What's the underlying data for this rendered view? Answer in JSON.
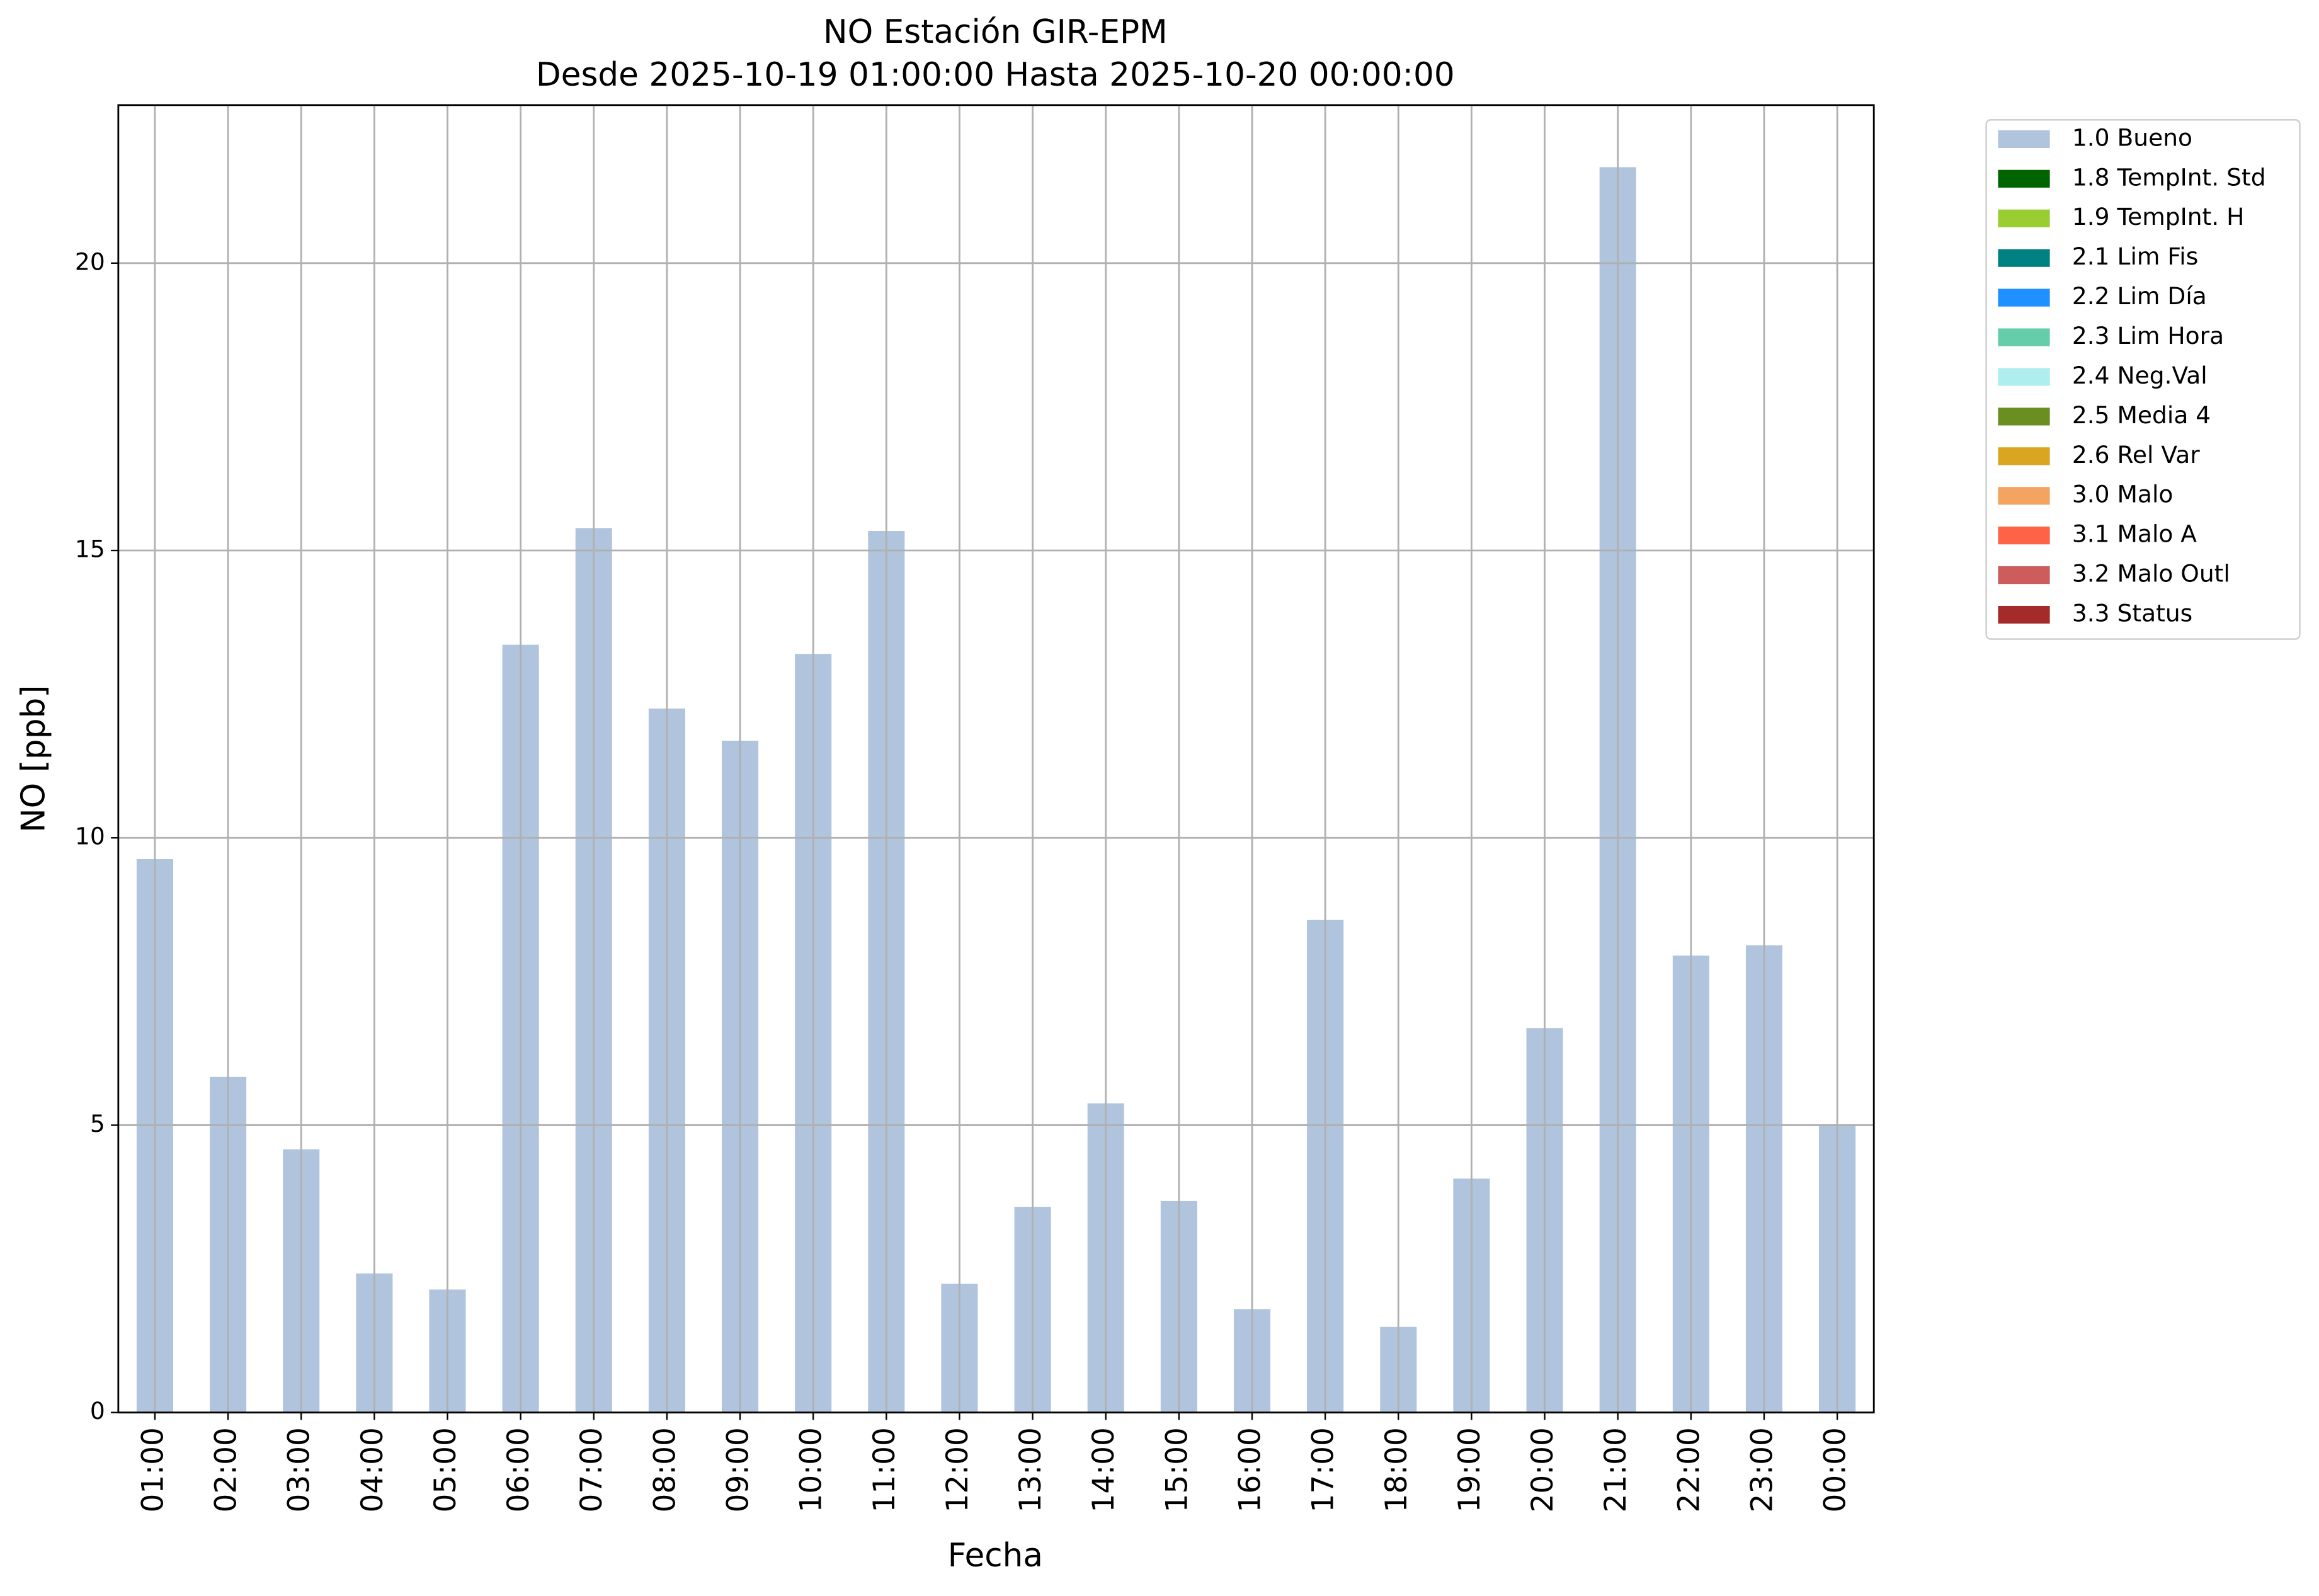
{
  "chart_data": {
    "type": "bar",
    "title": "NO Estación GIR-EPM",
    "subtitle": "Desde 2025-10-19 01:00:00 Hasta 2025-10-20 00:00:00",
    "x_label": "Fecha",
    "y_label": "NO [ppb]",
    "categories": [
      "01:00",
      "02:00",
      "03:00",
      "04:00",
      "05:00",
      "06:00",
      "07:00",
      "08:00",
      "09:00",
      "10:00",
      "11:00",
      "12:00",
      "13:00",
      "14:00",
      "15:00",
      "16:00",
      "17:00",
      "18:00",
      "19:00",
      "20:00",
      "21:00",
      "22:00",
      "23:00",
      "00:00"
    ],
    "series": [
      {
        "name": "1.0 Bueno",
        "color": "#b0c4de",
        "values": [
          9.63,
          5.84,
          4.58,
          2.42,
          2.14,
          13.36,
          15.39,
          12.25,
          11.69,
          13.2,
          15.34,
          2.24,
          3.58,
          5.38,
          3.68,
          1.8,
          8.57,
          1.49,
          4.07,
          6.69,
          21.67,
          7.95,
          8.13,
          4.99
        ]
      },
      {
        "name": "1.8 TempInt. Std",
        "color": "#006400"
      },
      {
        "name": "1.9 TempInt. H",
        "color": "#9acd32"
      },
      {
        "name": "2.1 Lim Fis",
        "color": "#008080"
      },
      {
        "name": "2.2 Lim Día",
        "color": "#1e90ff"
      },
      {
        "name": "2.3 Lim Hora",
        "color": "#66cdaa"
      },
      {
        "name": "2.4 Neg.Val",
        "color": "#afeeee"
      },
      {
        "name": "2.5 Media 4",
        "color": "#6b8e23"
      },
      {
        "name": "2.6 Rel Var",
        "color": "#daa520"
      },
      {
        "name": "3.0 Malo",
        "color": "#f4a460"
      },
      {
        "name": "3.1 Malo A",
        "color": "#ff6347"
      },
      {
        "name": "3.2 Malo Outl",
        "color": "#cd5c5c"
      },
      {
        "name": "3.3 Status",
        "color": "#a52a2a"
      }
    ],
    "ylim": [
      0,
      22.75
    ],
    "yticks": [
      0,
      5,
      10,
      15,
      20
    ],
    "grid": true,
    "legend": "outside-upper-right"
  }
}
